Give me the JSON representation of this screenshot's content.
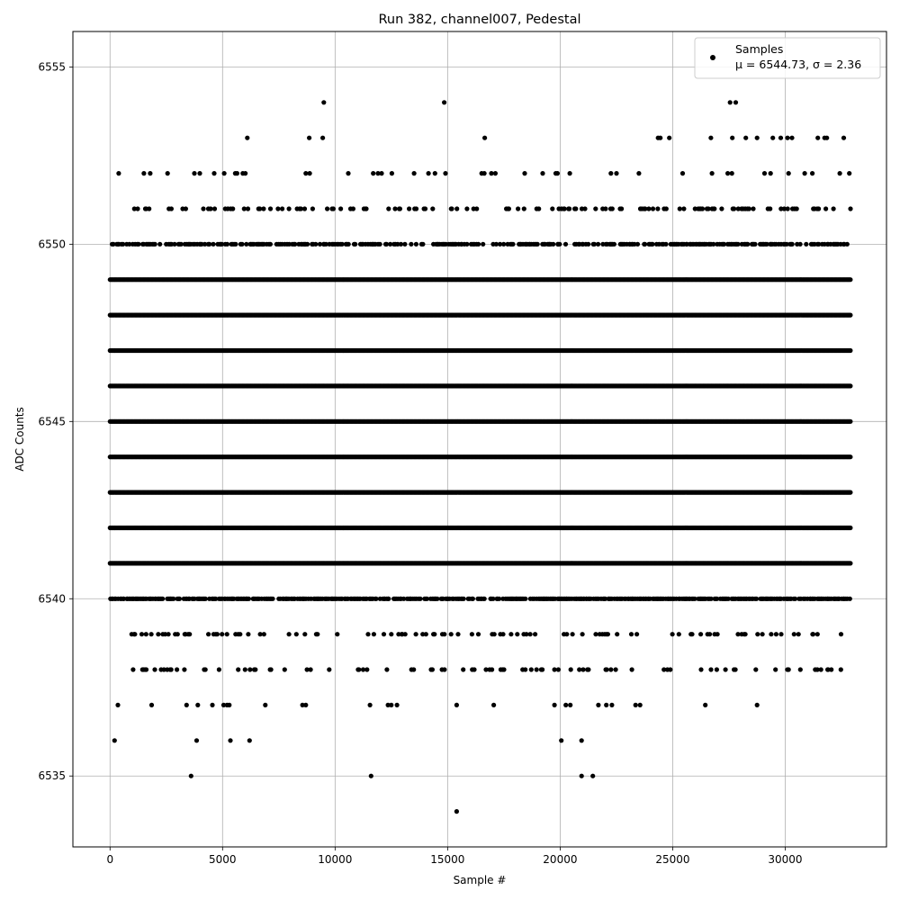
{
  "chart_data": {
    "type": "scatter",
    "title": "Run 382, channel007, Pedestal",
    "xlabel": "Sample #",
    "ylabel": "ADC Counts",
    "xlim": [
      -1650,
      34500
    ],
    "ylim": [
      6533,
      6556
    ],
    "xticks": [
      0,
      5000,
      10000,
      15000,
      20000,
      25000,
      30000
    ],
    "yticks": [
      6535,
      6540,
      6545,
      6550,
      6555
    ],
    "grid": true,
    "legend_position": "top-right",
    "marker_color": "#000000",
    "legend": {
      "label": "Samples",
      "stats": "μ = 6544.73, σ = 2.36"
    },
    "series": [
      {
        "name": "Samples",
        "x_range": [
          0,
          32900
        ],
        "levels": [
          {
            "y": 6541,
            "ranges": [
              [
                0,
                32900
              ]
            ]
          },
          {
            "y": 6542,
            "ranges": [
              [
                0,
                32900
              ]
            ]
          },
          {
            "y": 6543,
            "ranges": [
              [
                0,
                32900
              ]
            ]
          },
          {
            "y": 6544,
            "ranges": [
              [
                0,
                32900
              ]
            ]
          },
          {
            "y": 6545,
            "ranges": [
              [
                0,
                32900
              ]
            ]
          },
          {
            "y": 6546,
            "ranges": [
              [
                0,
                32900
              ]
            ]
          },
          {
            "y": 6547,
            "ranges": [
              [
                0,
                32900
              ]
            ]
          },
          {
            "y": 6548,
            "ranges": [
              [
                0,
                32900
              ]
            ]
          },
          {
            "y": 6549,
            "ranges": [
              [
                0,
                32900
              ]
            ]
          }
        ],
        "partial_levels": [
          {
            "y": 6540,
            "density": 0.75
          },
          {
            "y": 6550,
            "density": 0.55
          },
          {
            "y": 6539,
            "density": 0.18
          },
          {
            "y": 6538,
            "density": 0.14
          },
          {
            "y": 6551,
            "density": 0.2
          },
          {
            "y": 6552,
            "density": 0.07
          }
        ],
        "points": [
          [
            200,
            6536
          ],
          [
            3850,
            6536
          ],
          [
            5350,
            6536
          ],
          [
            6200,
            6536
          ],
          [
            20050,
            6536
          ],
          [
            20950,
            6536
          ],
          [
            3600,
            6535
          ],
          [
            11600,
            6535
          ],
          [
            20950,
            6535
          ],
          [
            21450,
            6535
          ],
          [
            15400,
            6534
          ],
          [
            9500,
            6554
          ],
          [
            14850,
            6554
          ],
          [
            27550,
            6554
          ],
          [
            27800,
            6554
          ],
          [
            6100,
            6553
          ],
          [
            8850,
            6553
          ],
          [
            9450,
            6553
          ],
          [
            16650,
            6553
          ],
          [
            24350,
            6553
          ],
          [
            24450,
            6553
          ],
          [
            24850,
            6553
          ],
          [
            26700,
            6553
          ],
          [
            27650,
            6553
          ],
          [
            28250,
            6553
          ],
          [
            28750,
            6553
          ],
          [
            29450,
            6553
          ],
          [
            29800,
            6553
          ],
          [
            30100,
            6553
          ],
          [
            30300,
            6553
          ],
          [
            31450,
            6553
          ],
          [
            31750,
            6553
          ],
          [
            31850,
            6553
          ],
          [
            32600,
            6553
          ],
          [
            350,
            6537
          ],
          [
            1850,
            6537
          ],
          [
            3400,
            6537
          ],
          [
            3900,
            6537
          ],
          [
            4550,
            6537
          ],
          [
            5050,
            6537
          ],
          [
            5200,
            6537
          ],
          [
            5300,
            6537
          ],
          [
            6900,
            6537
          ],
          [
            8550,
            6537
          ],
          [
            8700,
            6537
          ],
          [
            11550,
            6537
          ],
          [
            12350,
            6537
          ],
          [
            12500,
            6537
          ],
          [
            12750,
            6537
          ],
          [
            15400,
            6537
          ],
          [
            17050,
            6537
          ],
          [
            19750,
            6537
          ],
          [
            20250,
            6537
          ],
          [
            20450,
            6537
          ],
          [
            21700,
            6537
          ],
          [
            22050,
            6537
          ],
          [
            22300,
            6537
          ],
          [
            23350,
            6537
          ],
          [
            23550,
            6537
          ],
          [
            26450,
            6537
          ],
          [
            28750,
            6537
          ]
        ]
      }
    ]
  }
}
